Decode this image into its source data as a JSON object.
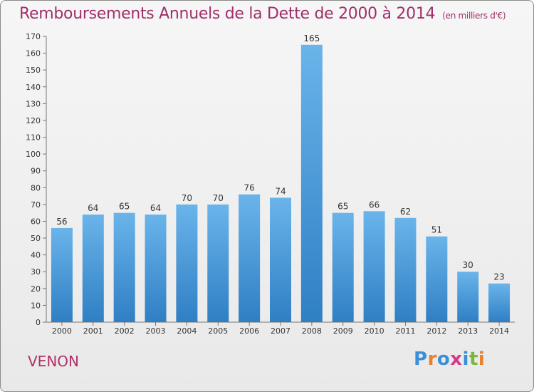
{
  "header": {
    "title": "Remboursements Annuels de la Dette de 2000 à 2014",
    "unit": "(en milliers d'€)"
  },
  "footer": {
    "commune": "VENON",
    "logo": [
      "P",
      "r",
      "o",
      "x",
      "i",
      "t",
      "i"
    ]
  },
  "colors": {
    "title": "#a0306a",
    "bar_top": "#6ab4ea",
    "bar_bottom": "#2f7fc4",
    "logo": [
      "#3a8fd8",
      "#e9802a",
      "#3a8fd8",
      "#d63a8a",
      "#3a8fd8",
      "#79b73a",
      "#e9802a"
    ]
  },
  "chart_data": {
    "type": "bar",
    "categories": [
      "2000",
      "2001",
      "2002",
      "2003",
      "2004",
      "2005",
      "2006",
      "2007",
      "2008",
      "2009",
      "2010",
      "2011",
      "2012",
      "2013",
      "2014"
    ],
    "values": [
      56,
      64,
      65,
      64,
      70,
      70,
      76,
      74,
      165,
      65,
      66,
      62,
      51,
      30,
      23
    ],
    "ylim": [
      0,
      170
    ],
    "yticks": [
      0,
      10,
      20,
      30,
      40,
      50,
      60,
      70,
      80,
      90,
      100,
      110,
      120,
      130,
      140,
      150,
      160,
      170
    ],
    "grid": false
  }
}
